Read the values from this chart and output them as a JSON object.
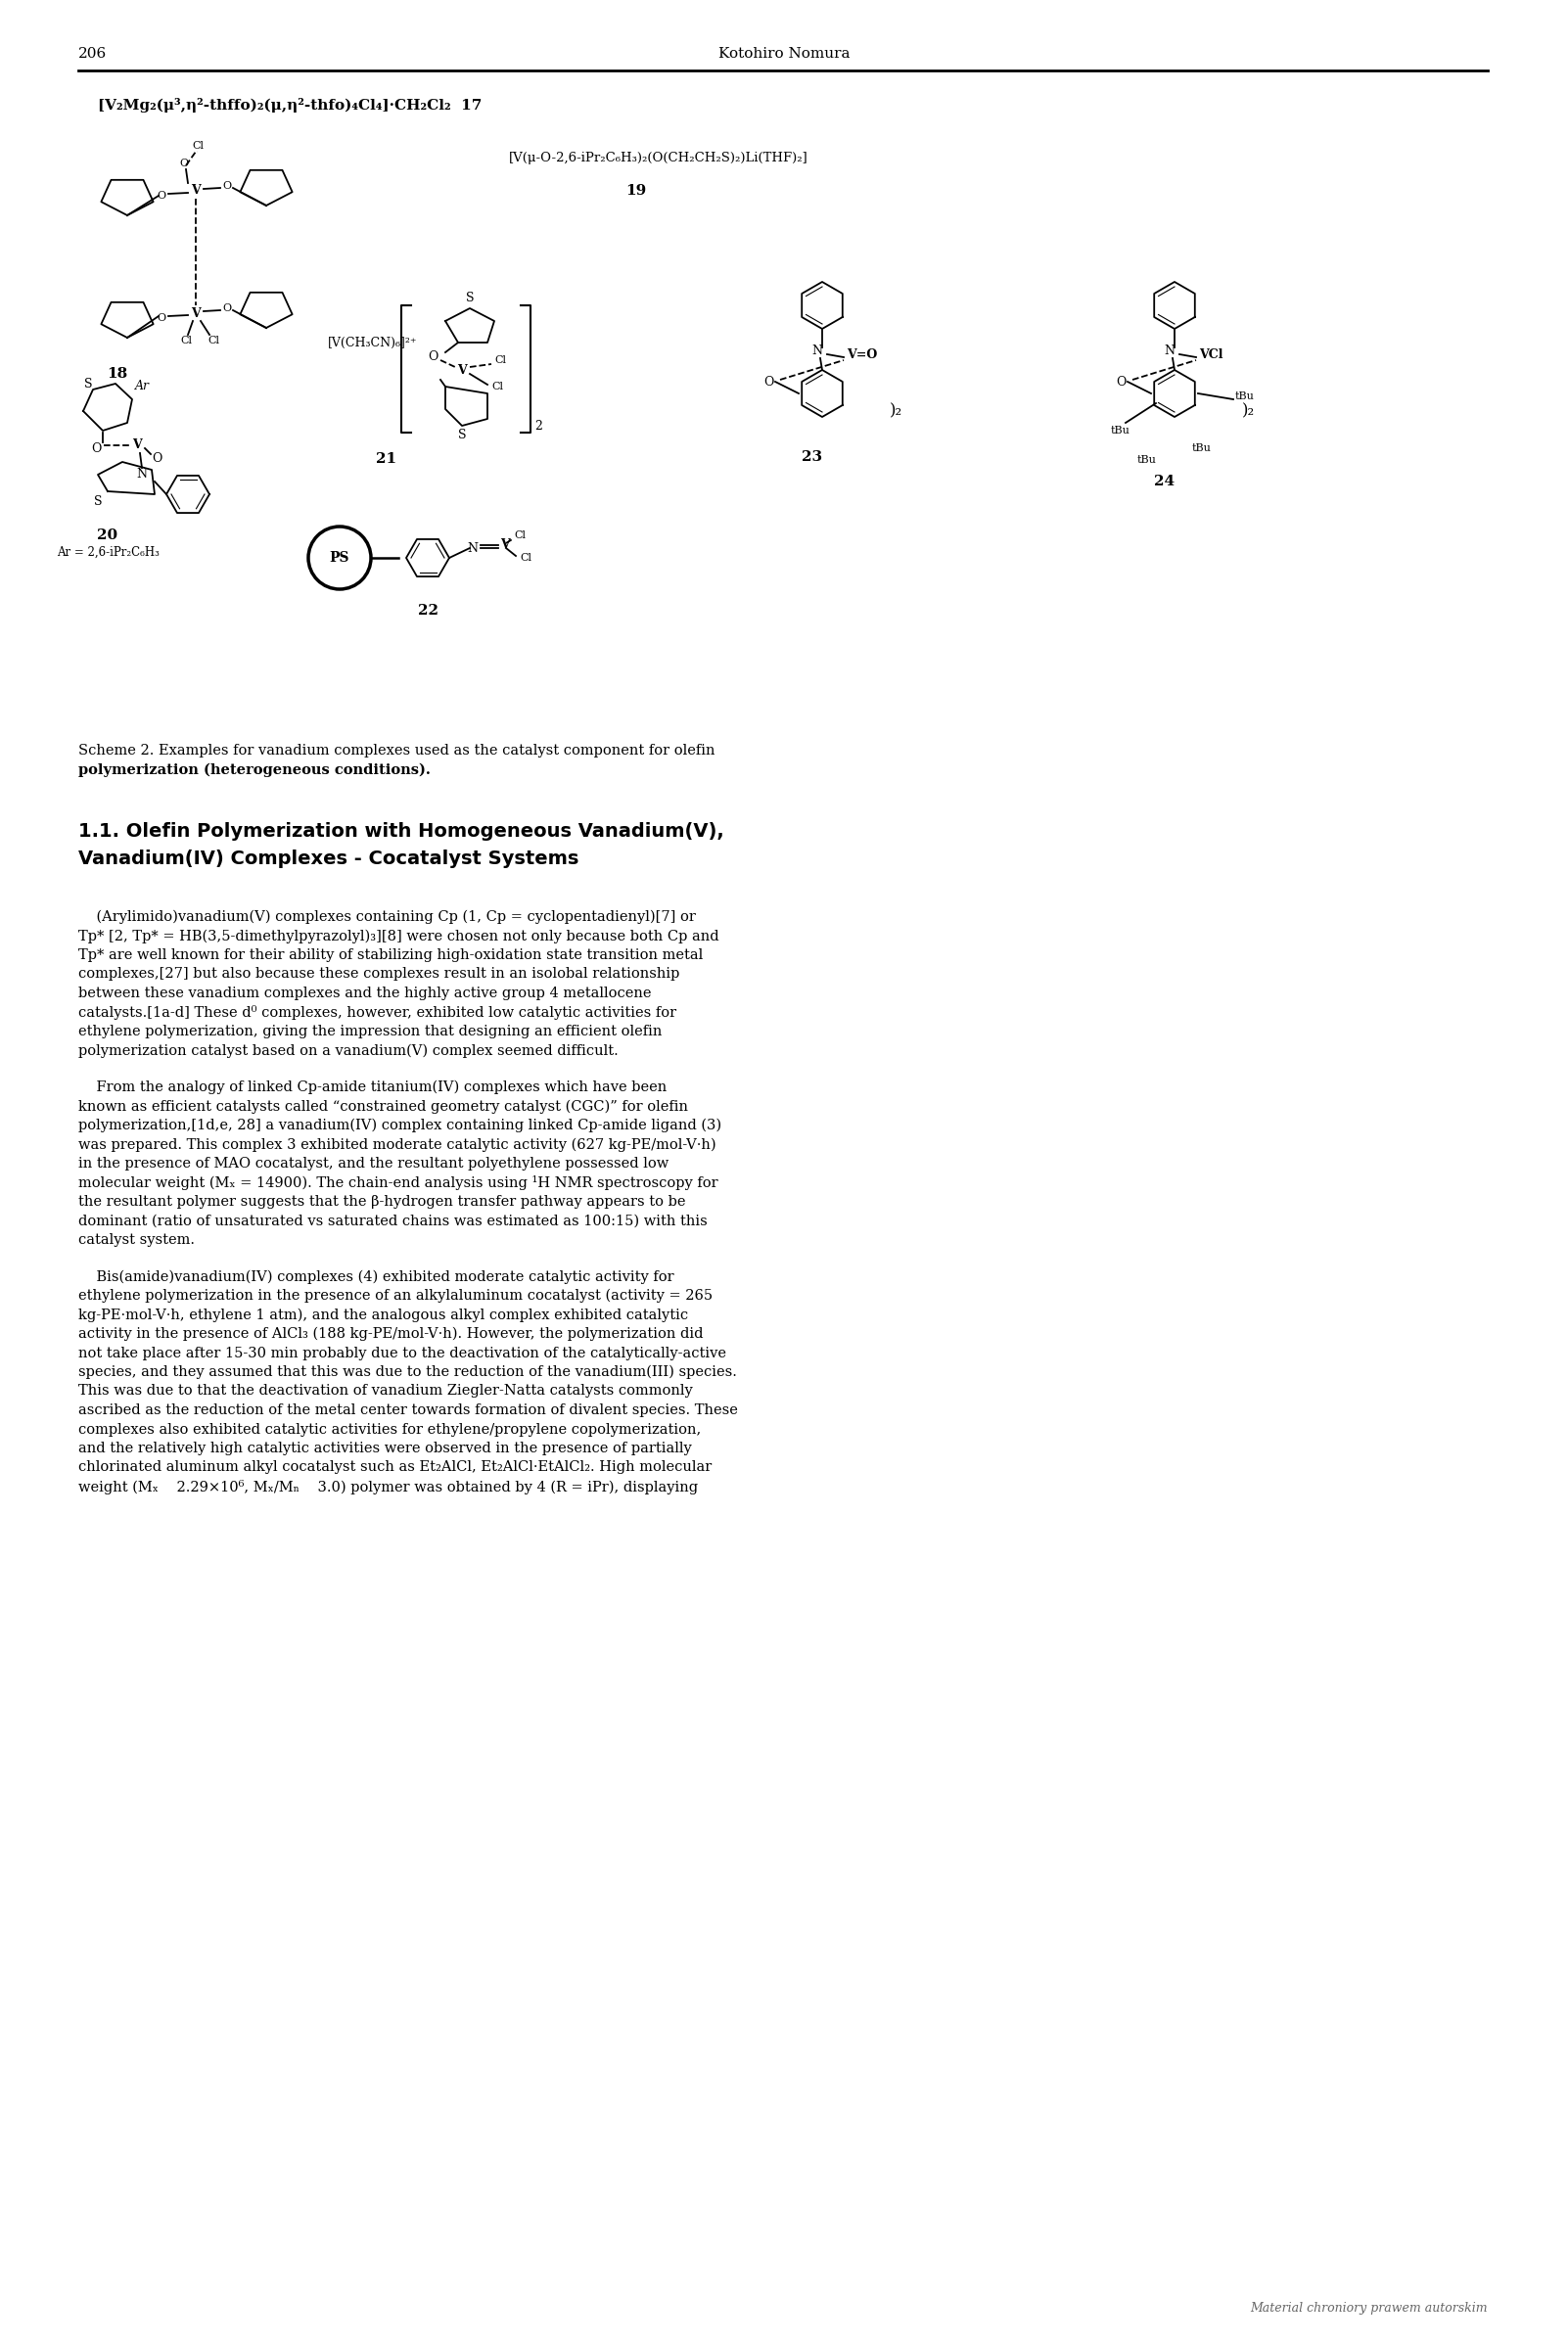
{
  "page_number": "206",
  "header_author": "Kotohiro Nomura",
  "background_color": "#ffffff",
  "text_color": "#000000",
  "formula_17": "[V₂Mg₂(μ³,η²-thffo)₂(μ,η²-thfo)₄Cl₄]·CH₂Cl₂  17",
  "formula_19": "[V(μ-O-2,6-iPr₂C₆H₃)₂(O(CH₂CH₂S)₂)Li(THF)₂]",
  "label_19": "19",
  "label_18": "18",
  "label_20": "20",
  "label_21": "21",
  "label_22": "22",
  "label_23": "23",
  "label_24": "24",
  "ar_label": "Ar = 2,6-iPr₂C₆H₃",
  "scheme_caption_line1": "Scheme 2. Examples for vanadium complexes used as the catalyst component for olefin",
  "scheme_caption_line2": "polymerization (heterogeneous conditions).",
  "section_title_line1": "1.1. Olefin Polymerization with Homogeneous Vanadium(V),",
  "section_title_line2": "Vanadium(IV) Complexes - Cocatalyst Systems",
  "para1_lines": [
    "    (Arylimido)vanadium(V) complexes containing Cp (1, Cp = cyclopentadienyl)[7] or",
    "Tp* [2, Tp* = HB(3,5-dimethylpyrazolyl)₃][8] were chosen not only because both Cp and",
    "Tp* are well known for their ability of stabilizing high-oxidation state transition metal",
    "complexes,[27] but also because these complexes result in an isolobal relationship",
    "between these vanadium complexes and the highly active group 4 metallocene",
    "catalysts.[1a-d] These d⁰ complexes, however, exhibited low catalytic activities for",
    "ethylene polymerization, giving the impression that designing an efficient olefin",
    "polymerization catalyst based on a vanadium(V) complex seemed difficult."
  ],
  "para2_lines": [
    "    From the analogy of linked Cp-amide titanium(IV) complexes which have been",
    "known as efficient catalysts called “constrained geometry catalyst (CGC)” for olefin",
    "polymerization,[1d,e, 28] a vanadium(IV) complex containing linked Cp-amide ligand (3)",
    "was prepared. This complex 3 exhibited moderate catalytic activity (627 kg-PE/mol-V·h)",
    "in the presence of MAO cocatalyst, and the resultant polyethylene possessed low",
    "molecular weight (Mₓ = 14900). The chain-end analysis using ¹H NMR spectroscopy for",
    "the resultant polymer suggests that the β-hydrogen transfer pathway appears to be",
    "dominant (ratio of unsaturated vs saturated chains was estimated as 100:15) with this",
    "catalyst system."
  ],
  "para3_lines": [
    "    Bis(amide)vanadium(IV) complexes (4) exhibited moderate catalytic activity for",
    "ethylene polymerization in the presence of an alkylaluminum cocatalyst (activity = 265",
    "kg-PE·mol-V·h, ethylene 1 atm), and the analogous alkyl complex exhibited catalytic",
    "activity in the presence of AlCl₃ (188 kg-PE/mol-V·h). However, the polymerization did",
    "not take place after 15-30 min probably due to the deactivation of the catalytically-active",
    "species, and they assumed that this was due to the reduction of the vanadium(III) species.",
    "This was due to that the deactivation of vanadium Ziegler-Natta catalysts commonly",
    "ascribed as the reduction of the metal center towards formation of divalent species. These",
    "complexes also exhibited catalytic activities for ethylene/propylene copolymerization,",
    "and the relatively high catalytic activities were observed in the presence of partially",
    "chlorinated aluminum alkyl cocatalyst such as Et₂AlCl, Et₂AlCl·EtAlCl₂. High molecular",
    "weight (Mₓ    2.29×10⁶, Mₓ/Mₙ    3.0) polymer was obtained by 4 (R = iPr), displaying"
  ],
  "footer": "Material chroniory prawem autorskim"
}
